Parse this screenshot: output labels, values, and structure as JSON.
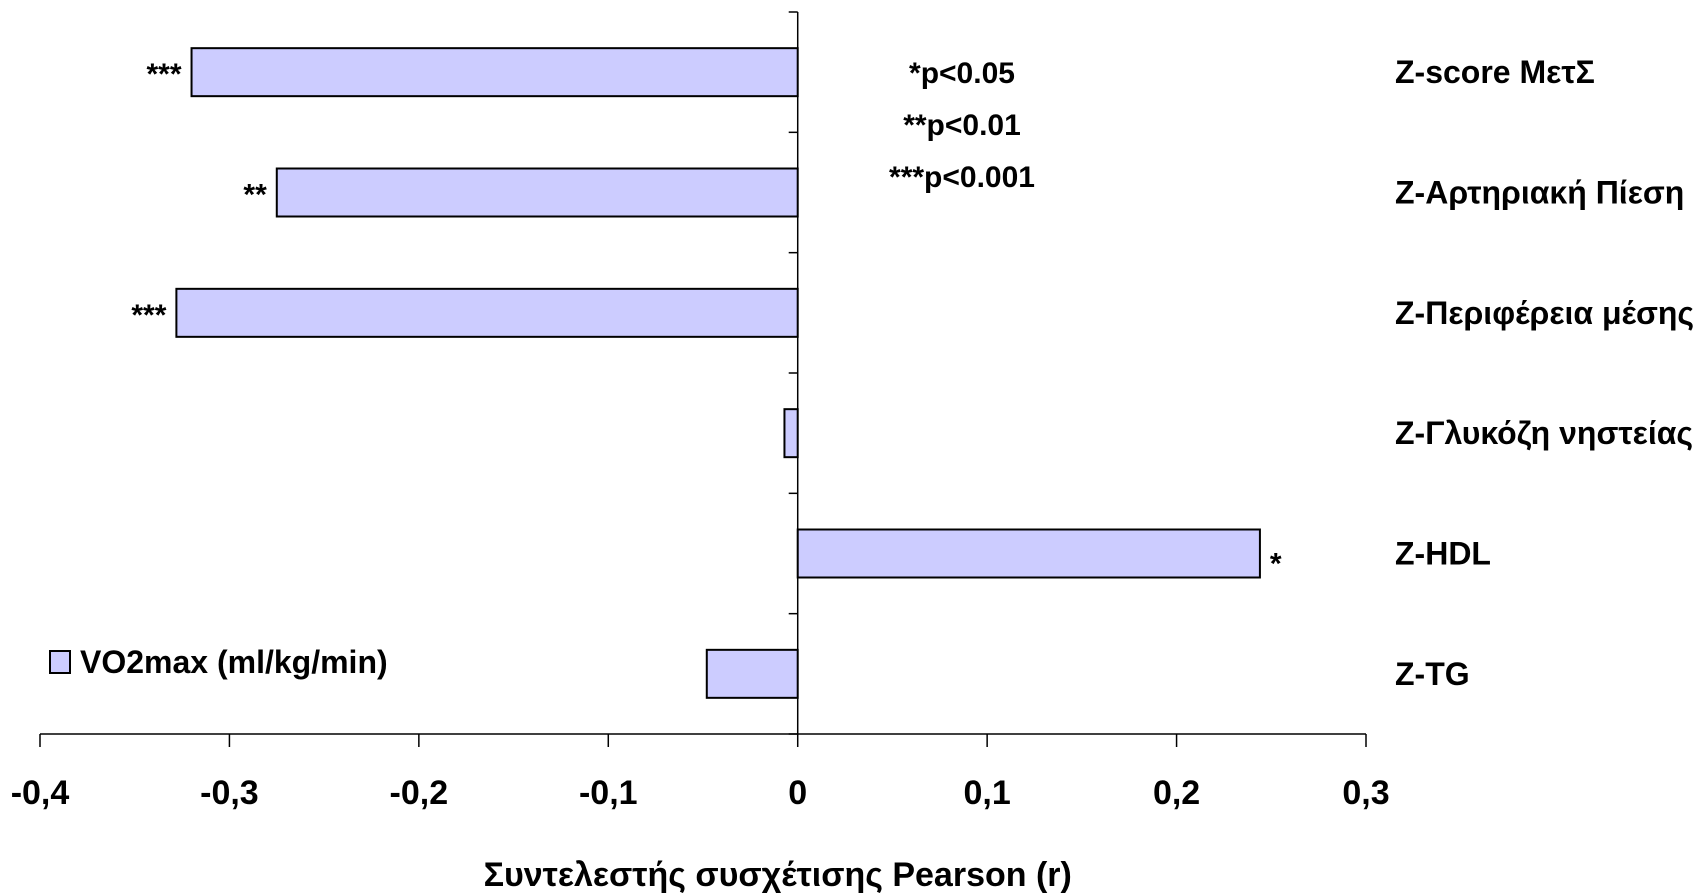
{
  "chart_data": {
    "type": "bar",
    "orientation": "horizontal",
    "categories": [
      "Z-score ΜετΣ",
      "Z-Αρτηριακή Πίεση",
      "Z-Περιφέρεια μέσης",
      "Z-Γλυκόζη νηστείας",
      "Z-HDL",
      "Z-TG"
    ],
    "series": [
      {
        "name": "VO2max (ml/kg/min)",
        "values": [
          -0.32,
          -0.275,
          -0.328,
          -0.007,
          0.244,
          -0.048
        ],
        "significance": [
          "***",
          "**",
          "***",
          "",
          "*",
          ""
        ],
        "color": "#ccccff"
      }
    ],
    "xlabel": "Συντελεστής συσχέτισης Pearson (r)",
    "ylabel": "",
    "xlim": [
      -0.4,
      0.3
    ],
    "xticks": [
      -0.4,
      -0.3,
      -0.2,
      -0.1,
      0,
      0.1,
      0.2,
      0.3
    ],
    "xtick_labels": [
      "-0,4",
      "-0,3",
      "-0,2",
      "-0,1",
      "0",
      "0,1",
      "0,2",
      "0,3"
    ],
    "significance_notes": [
      "*p<0.05",
      "**p<0.01",
      "***p<0.001"
    ],
    "legend": {
      "label": "VO2max (ml/kg/min)",
      "placement": "bottom-left"
    },
    "grid": false,
    "colors": {
      "bar_fill": "#ccccff",
      "bar_stroke": "#000000",
      "axis": "#000000"
    }
  }
}
